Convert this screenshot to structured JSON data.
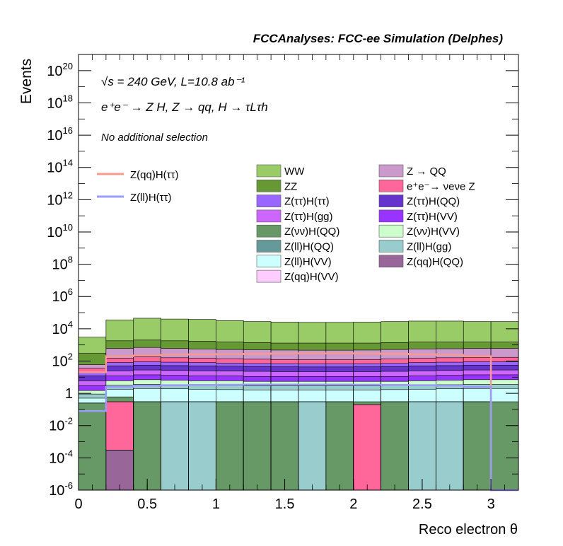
{
  "chart_data": {
    "type": "bar",
    "title": "FCCAnalyses: FCC-ee Simulation (Delphes)",
    "xlabel": "Reco electron θ",
    "ylabel": "Events",
    "log_y": true,
    "xlim": [
      0,
      3.2
    ],
    "ylim": [
      1e-06,
      1e+21
    ],
    "annotations": {
      "line1": "√s = 240 GeV, L=10.8 ab⁻¹",
      "line2": "e⁺e⁻ → Z H, Z → qq, H → τLτh",
      "line3": "No additional selection"
    },
    "x_ticks": [
      "0",
      "0.5",
      "1",
      "1.5",
      "2",
      "2.5",
      "3"
    ],
    "y_ticks": [
      "10^-6",
      "10^-4",
      "10^-2",
      "1",
      "10^2",
      "10^4",
      "10^6",
      "10^8",
      "10^10",
      "10^12",
      "10^14",
      "10^16",
      "10^18",
      "10^20"
    ],
    "bin_edges": [
      0,
      0.2,
      0.4,
      0.6,
      0.8,
      1.0,
      1.2,
      1.4,
      1.6,
      1.8,
      2.0,
      2.2,
      2.4,
      2.6,
      2.8,
      3.0,
      3.2
    ],
    "legend": {
      "lines": [
        {
          "name": "Z(qq)H(ττ)",
          "color": "#f7998f"
        },
        {
          "name": "Z(ll)H(ττ)",
          "color": "#9b9bff"
        }
      ],
      "fills_left": [
        {
          "name": "WW",
          "color": "#99cc66"
        },
        {
          "name": "ZZ",
          "color": "#669933"
        },
        {
          "name": "Z(ττ)H(ττ)",
          "color": "#9966ff"
        },
        {
          "name": "Z(ττ)H(gg)",
          "color": "#cc66ff"
        },
        {
          "name": "Z(νν)H(QQ)",
          "color": "#669966"
        },
        {
          "name": "Z(ll)H(QQ)",
          "color": "#669999"
        },
        {
          "name": "Z(ll)H(VV)",
          "color": "#ccffff"
        },
        {
          "name": "Z(qq)H(VV)",
          "color": "#ffccff"
        }
      ],
      "fills_right": [
        {
          "name": "Z → QQ",
          "color": "#cc99cc"
        },
        {
          "name": "e⁺e⁻→ νeνe Z",
          "color": "#ff6699"
        },
        {
          "name": "Z(ττ)H(QQ)",
          "color": "#6633cc"
        },
        {
          "name": "Z(ττ)H(VV)",
          "color": "#9933ff"
        },
        {
          "name": "Z(νν)H(VV)",
          "color": "#ccffcc"
        },
        {
          "name": "Z(ll)H(gg)",
          "color": "#99cccc"
        },
        {
          "name": "Z(qq)H(QQ)",
          "color": "#996699"
        }
      ]
    },
    "stack_totals": {
      "WW": [
        3000,
        35000,
        45000,
        40000,
        38000,
        32000,
        28000,
        26000,
        25000,
        25000,
        26000,
        28000,
        30000,
        30000,
        28000,
        28000
      ],
      "ZZ": [
        300,
        1800,
        2000,
        1800,
        1700,
        1500,
        1400,
        1300,
        1300,
        1300,
        1300,
        1400,
        1500,
        1500,
        1500,
        1500
      ],
      "Z → QQ": [
        60,
        600,
        700,
        600,
        550,
        520,
        500,
        480,
        470,
        470,
        480,
        520,
        560,
        580,
        600,
        600
      ],
      "e⁺e⁻→ νeνe Z": [
        35,
        150,
        180,
        160,
        150,
        140,
        130,
        125,
        120,
        120,
        125,
        135,
        150,
        160,
        170,
        170
      ],
      "Z(ττ)H(ττ)": [
        20,
        80,
        90,
        85,
        80,
        75,
        70,
        68,
        66,
        66,
        68,
        72,
        80,
        85,
        90,
        90
      ],
      "Z(ττ)H(QQ)": [
        12,
        50,
        55,
        52,
        50,
        48,
        46,
        44,
        43,
        43,
        44,
        46,
        50,
        52,
        55,
        55
      ],
      "Z(ττ)H(gg)": [
        6,
        25,
        28,
        26,
        25,
        24,
        23,
        22,
        22,
        22,
        22,
        23,
        25,
        26,
        28,
        28
      ],
      "Z(ττ)H(VV)": [
        3,
        12,
        14,
        13,
        12,
        12,
        11,
        11,
        11,
        11,
        11,
        11,
        12,
        13,
        14,
        14
      ],
      "Z(νν)H(VV)": [
        1.5,
        6,
        7,
        6.5,
        6,
        6,
        5.5,
        5.5,
        5.5,
        5.5,
        5.5,
        5.5,
        6,
        6.5,
        7,
        7
      ],
      "Z(ll)H(gg)": [
        0.9,
        3.2,
        3.6,
        3.4,
        3.2,
        3.1,
        3.0,
        2.9,
        2.9,
        2.9,
        2.9,
        3.0,
        3.2,
        3.4,
        3.6,
        3.6
      ],
      "Z(ll)H(VV)": [
        0.5,
        1.8,
        2.0,
        1.9,
        1.8,
        1.7,
        1.6,
        1.6,
        1.6,
        1.6,
        1.6,
        1.7,
        1.8,
        1.9,
        2.0,
        2.0
      ],
      "Z(νν)H(QQ)": [
        0.25,
        0.6,
        0.3,
        0.3,
        0.3,
        0.3,
        0.3,
        0.3,
        0.3,
        0.3,
        0.3,
        0.3,
        0.3,
        0.3,
        0.3,
        0.3
      ]
    },
    "bottom_fills": {
      "Z(νν)H(QQ)": [
        0.25,
        0,
        0.3,
        0,
        0,
        0.3,
        0.3,
        0.3,
        0,
        0.3,
        0,
        0.3,
        0,
        0,
        0.3,
        0
      ],
      "Z(ll)H(gg)": [
        0,
        0,
        0,
        0.3,
        0.3,
        0,
        0,
        0,
        0.3,
        0,
        0,
        0,
        0.3,
        0.3,
        0,
        0
      ],
      "e⁺e⁻→ νeνe Z": [
        0,
        0.3,
        0,
        0,
        0,
        0,
        0,
        0,
        0,
        0,
        0.2,
        0,
        0,
        0,
        0,
        0
      ],
      "Z(qq)H(QQ)": [
        0,
        0.0003,
        0,
        0,
        0,
        0,
        0,
        0,
        0,
        0,
        0,
        0,
        0,
        0,
        0,
        0
      ]
    },
    "line_series": [
      {
        "name": "Z(qq)H(ττ)",
        "values": [
          20,
          200,
          220,
          250,
          260,
          270,
          280,
          290,
          300,
          300,
          290,
          280,
          260,
          240,
          200,
          1e-06
        ]
      },
      {
        "name": "Z(ll)H(ττ)",
        "values": [
          0.08,
          2.5,
          3,
          3.2,
          3.3,
          3.4,
          3.5,
          3.5,
          3.5,
          3.5,
          3.4,
          3.3,
          3.2,
          3.0,
          2.5,
          1e-06
        ]
      }
    ]
  }
}
